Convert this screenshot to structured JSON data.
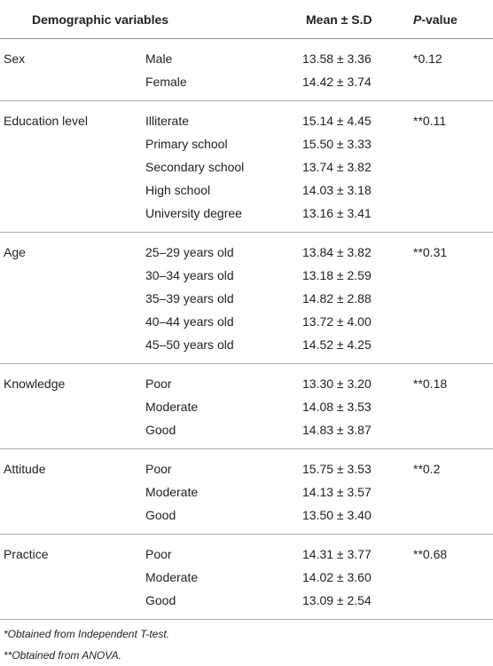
{
  "header": {
    "demographic_variables": "Demographic variables",
    "mean_sd": "Mean ± S.D",
    "p_value_italic": "P",
    "p_value_rest": "-value"
  },
  "groups": [
    {
      "variable": "Sex",
      "p_value": "*0.12",
      "rows": [
        {
          "category": "Male",
          "mean_sd": "13.58 ± 3.36"
        },
        {
          "category": "Female",
          "mean_sd": "14.42 ± 3.74"
        }
      ]
    },
    {
      "variable": "Education level",
      "p_value": "**0.11",
      "rows": [
        {
          "category": "Illiterate",
          "mean_sd": "15.14 ± 4.45"
        },
        {
          "category": "Primary school",
          "mean_sd": "15.50 ± 3.33"
        },
        {
          "category": "Secondary school",
          "mean_sd": "13.74 ± 3.82"
        },
        {
          "category": "High school",
          "mean_sd": "14.03 ± 3.18"
        },
        {
          "category": "University degree",
          "mean_sd": "13.16 ± 3.41"
        }
      ]
    },
    {
      "variable": "Age",
      "p_value": "**0.31",
      "rows": [
        {
          "category": "25–29 years old",
          "mean_sd": "13.84 ± 3.82"
        },
        {
          "category": "30–34 years old",
          "mean_sd": "13.18 ± 2.59"
        },
        {
          "category": "35–39 years old",
          "mean_sd": "14.82 ± 2.88"
        },
        {
          "category": "40–44 years old",
          "mean_sd": "13.72 ± 4.00"
        },
        {
          "category": "45–50 years old",
          "mean_sd": "14.52 ± 4.25"
        }
      ]
    },
    {
      "variable": "Knowledge",
      "p_value": "**0.18",
      "rows": [
        {
          "category": "Poor",
          "mean_sd": "13.30 ± 3.20"
        },
        {
          "category": "Moderate",
          "mean_sd": "14.08 ± 3.53"
        },
        {
          "category": "Good",
          "mean_sd": "14.83 ± 3.87"
        }
      ]
    },
    {
      "variable": "Attitude",
      "p_value": "**0.2",
      "rows": [
        {
          "category": "Poor",
          "mean_sd": "15.75 ± 3.53"
        },
        {
          "category": "Moderate",
          "mean_sd": "14.13 ± 3.57"
        },
        {
          "category": "Good",
          "mean_sd": "13.50 ± 3.40"
        }
      ]
    },
    {
      "variable": "Practice",
      "p_value": "**0.68",
      "rows": [
        {
          "category": "Poor",
          "mean_sd": "14.31 ± 3.77"
        },
        {
          "category": "Moderate",
          "mean_sd": "14.02 ± 3.60"
        },
        {
          "category": "Good",
          "mean_sd": "13.09 ± 2.54"
        }
      ]
    }
  ],
  "footnotes": [
    "*Obtained from Independent T-test.",
    "**Obtained from ANOVA."
  ]
}
